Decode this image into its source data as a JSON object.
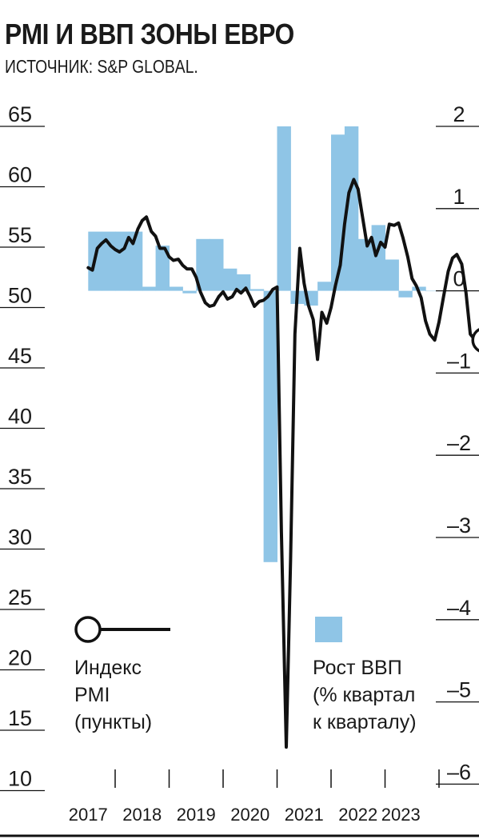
{
  "header": {
    "title": "PMI И ВВП ЗОНЫ ЕВРО",
    "source": "ИСТОЧНИК: S&P GLOBAL."
  },
  "legend": {
    "pmi_lines": [
      "Индекс",
      "PMI",
      "(пункты)"
    ],
    "gdp_lines": [
      "Рост ВВП",
      "(% квартал",
      "к кварталу)"
    ]
  },
  "colors": {
    "gdp_bar": "#8fc5e6",
    "pmi_line": "#111111",
    "axis": "#111111"
  },
  "chart_data": {
    "type": "bar+line",
    "title": "PMI И ВВП ЗОНЫ ЕВРО",
    "x_tick_labels": [
      "2017",
      "2018",
      "2019",
      "2020",
      "2021",
      "2022",
      "2023"
    ],
    "left_axis": {
      "label": "Индекс PMI (пункты)",
      "ticks": [
        "65",
        "60",
        "55",
        "50",
        "45",
        "40",
        "35",
        "30",
        "25",
        "20",
        "15",
        "10"
      ],
      "range": [
        10,
        65
      ]
    },
    "right_axis": {
      "label": "Рост ВВП (% квартал к кварталу)",
      "ticks": [
        "2",
        "1",
        "0",
        "–1",
        "–2",
        "–3",
        "–4",
        "–5",
        "–6"
      ],
      "range": [
        -6,
        2
      ]
    },
    "series": [
      {
        "name": "Рост ВВП (% квартал к кварталу)",
        "type": "bar",
        "axis": "right",
        "x": [
          "2017 Q1",
          "2017 Q2",
          "2017 Q3",
          "2017 Q4",
          "2018 Q1",
          "2018 Q2",
          "2018 Q3",
          "2018 Q4",
          "2019 Q1",
          "2019 Q2",
          "2019 Q3",
          "2019 Q4",
          "2020 Q1",
          "2020 Q2",
          "2020 Q3",
          "2020 Q4",
          "2021 Q1",
          "2021 Q2",
          "2021 Q3",
          "2021 Q4",
          "2022 Q1",
          "2022 Q2",
          "2022 Q3",
          "2022 Q4",
          "2023 Q1",
          "2023 Q2"
        ],
        "values": [
          0.72,
          0.72,
          0.72,
          0.72,
          0.05,
          0.55,
          0.05,
          -0.03,
          0.63,
          0.63,
          0.27,
          0.2,
          0.02,
          -3.3,
          2.0,
          -0.16,
          -0.18,
          0.11,
          1.9,
          2.0,
          0.63,
          0.8,
          0.38,
          -0.08,
          0.05,
          0.0
        ]
      },
      {
        "name": "Индекс PMI (пункты)",
        "type": "line",
        "axis": "left",
        "x": [
          2016.5,
          2016.58,
          2016.67,
          2016.75,
          2016.83,
          2016.92,
          2017.0,
          2017.08,
          2017.17,
          2017.25,
          2017.33,
          2017.42,
          2017.5,
          2017.58,
          2017.67,
          2017.75,
          2017.83,
          2017.92,
          2018.0,
          2018.08,
          2018.17,
          2018.25,
          2018.33,
          2018.42,
          2018.5,
          2018.58,
          2018.67,
          2018.75,
          2018.83,
          2018.92,
          2019.0,
          2019.08,
          2019.17,
          2019.25,
          2019.33,
          2019.42,
          2019.5,
          2019.58,
          2019.67,
          2019.75,
          2019.83,
          2019.92,
          2020.0,
          2020.08,
          2020.17,
          2020.25,
          2020.33,
          2020.42,
          2020.5,
          2020.58,
          2020.67,
          2020.75,
          2020.83,
          2020.92,
          2021.0,
          2021.08,
          2021.17,
          2021.25,
          2021.33,
          2021.42,
          2021.5,
          2021.58,
          2021.67,
          2021.75,
          2021.83,
          2021.92,
          2022.0,
          2022.08,
          2022.17,
          2022.25,
          2022.33,
          2022.42,
          2022.5,
          2022.58,
          2022.67,
          2022.75,
          2022.83,
          2022.92,
          2023.0,
          2023.08,
          2023.17,
          2023.25,
          2023.33,
          2023.42,
          2023.5,
          2023.58,
          2023.67
        ],
        "values": [
          53.3,
          53.1,
          54.9,
          55.3,
          55.6,
          55.1,
          54.8,
          54.6,
          54.9,
          55.8,
          55.3,
          56.5,
          57.2,
          57.5,
          56.3,
          55.9,
          54.9,
          54.9,
          54.2,
          53.9,
          54.0,
          53.5,
          53.2,
          53.2,
          52.5,
          51.3,
          50.4,
          50.1,
          50.2,
          50.9,
          51.3,
          50.7,
          50.9,
          51.5,
          51.2,
          51.6,
          50.9,
          50.1,
          50.5,
          50.6,
          50.9,
          51.5,
          51.7,
          31.4,
          13.6,
          29.2,
          47.8,
          54.9,
          52.0,
          50.2,
          49.0,
          45.7,
          49.6,
          48.7,
          50.0,
          51.8,
          53.5,
          56.9,
          59.5,
          60.6,
          59.8,
          57.6,
          55.1,
          55.8,
          54.3,
          55.4,
          55.0,
          56.9,
          56.8,
          57.0,
          55.8,
          54.2,
          52.4,
          51.8,
          50.8,
          48.9,
          47.8,
          47.3,
          48.8,
          50.8,
          53.0,
          54.1,
          54.4,
          53.6,
          51.2,
          47.8,
          47.3
        ]
      }
    ]
  }
}
